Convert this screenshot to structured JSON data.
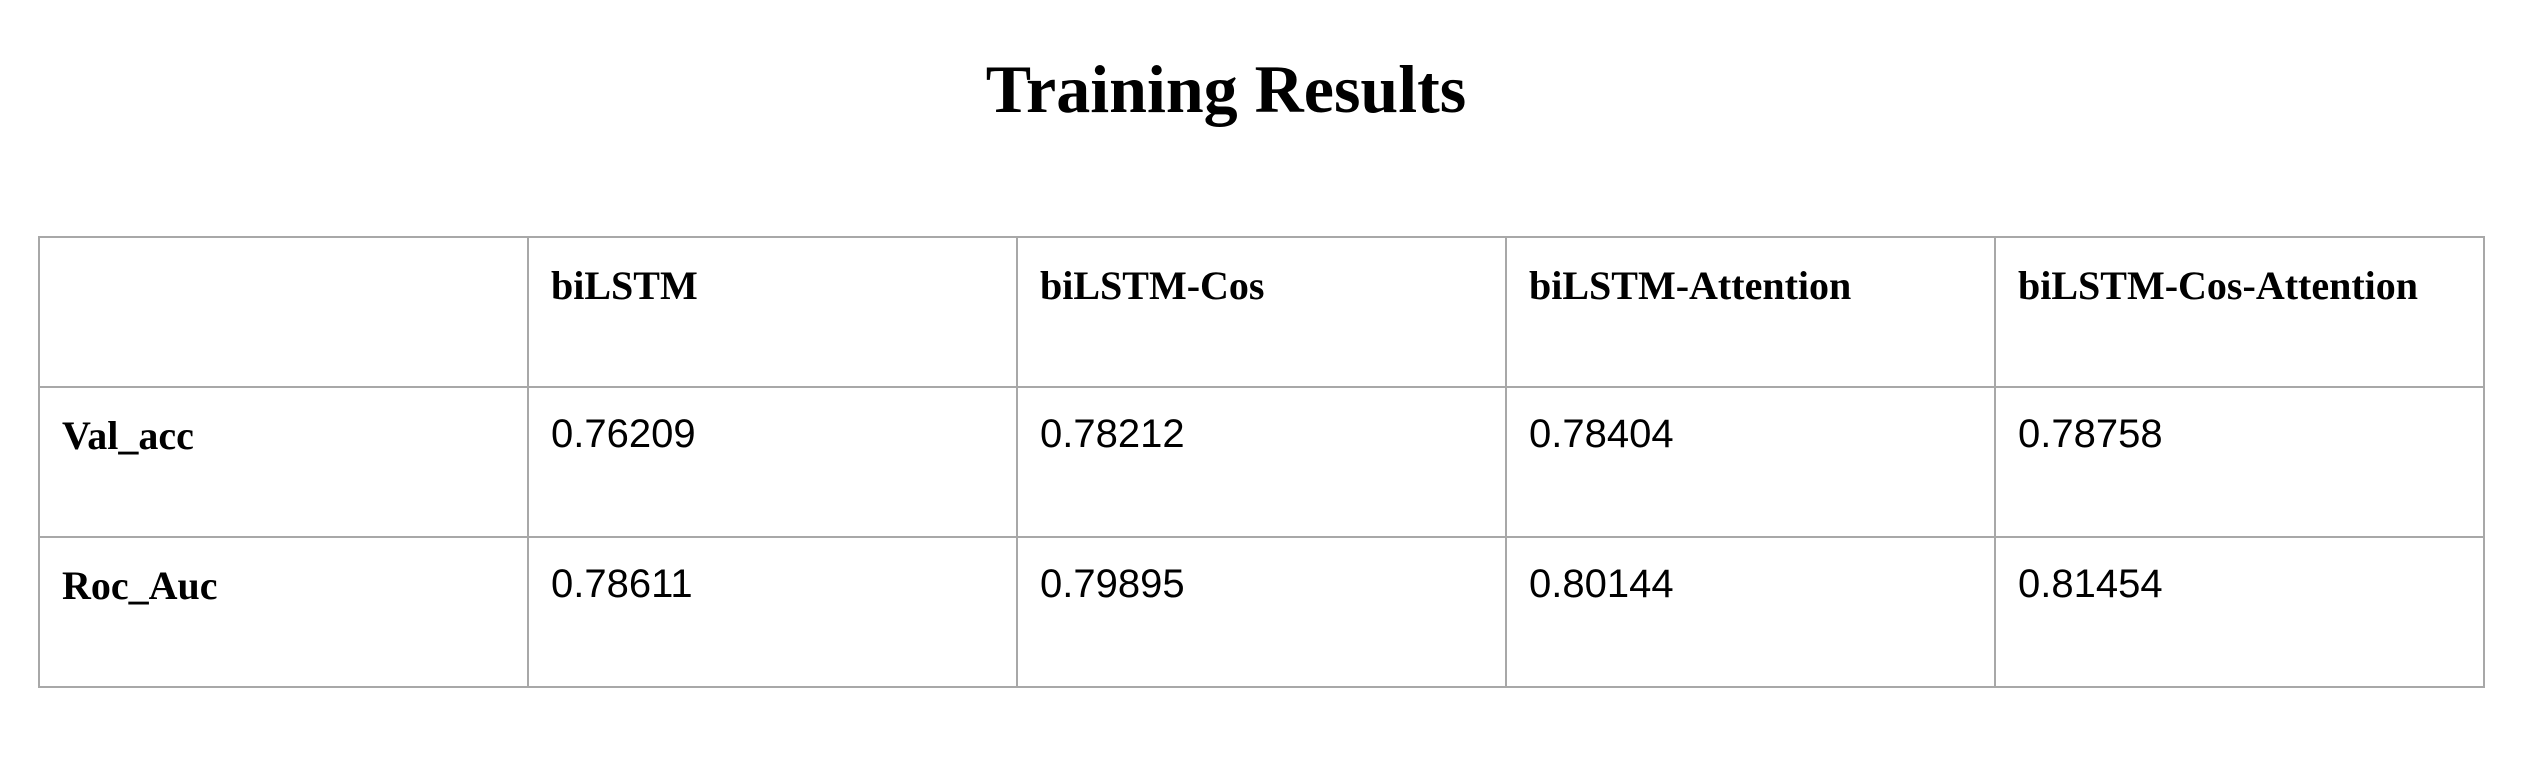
{
  "title": "Training Results",
  "table": {
    "corner": "",
    "columns": [
      "biLSTM",
      "biLSTM-Cos",
      "biLSTM-Attention",
      "biLSTM-Cos-Attention"
    ],
    "rows": [
      {
        "label": "Val_acc",
        "values": [
          "0.76209",
          "0.78212",
          "0.78404",
          "0.78758"
        ]
      },
      {
        "label": "Roc_Auc",
        "values": [
          "0.78611",
          "0.79895",
          "0.80144",
          "0.81454"
        ]
      }
    ]
  }
}
